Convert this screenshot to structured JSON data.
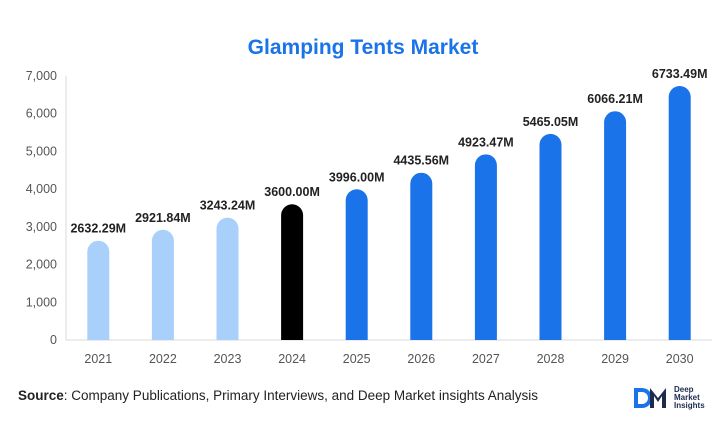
{
  "title": "Glamping Tents Market",
  "source": {
    "label": "Source",
    "text": ": Company Publications, Primary Interviews, and Deep Market insights Analysis"
  },
  "logo": {
    "mark": "DM",
    "lines": [
      "Deep",
      "Market",
      "Insights"
    ]
  },
  "colors": {
    "historical": "#a8d0fb",
    "base_year": "#000000",
    "forecast": "#1a73e8",
    "title": "#1a73e8"
  },
  "chart_data": {
    "type": "bar",
    "title": "Glamping Tents Market",
    "categories": [
      "2021",
      "2022",
      "2023",
      "2024",
      "2025",
      "2026",
      "2027",
      "2028",
      "2029",
      "2030"
    ],
    "values": [
      2632.29,
      2921.84,
      3243.24,
      3600.0,
      3996.0,
      4435.56,
      4923.47,
      5465.05,
      6066.21,
      6733.49
    ],
    "data_labels": [
      "2632.29M",
      "2921.84M",
      "3243.24M",
      "3600.00M",
      "3996.00M",
      "4435.56M",
      "4923.47M",
      "5465.05M",
      "6066.21M",
      "6733.49M"
    ],
    "bar_colors": [
      "#a8d0fb",
      "#a8d0fb",
      "#a8d0fb",
      "#000000",
      "#1a73e8",
      "#1a73e8",
      "#1a73e8",
      "#1a73e8",
      "#1a73e8",
      "#1a73e8"
    ],
    "ylim": [
      0,
      7000
    ],
    "yticks": [
      0,
      1000,
      2000,
      3000,
      4000,
      5000,
      6000,
      7000
    ],
    "ytick_labels": [
      "0",
      "1,000",
      "2,000",
      "3,000",
      "4,000",
      "5,000",
      "6,000",
      "7,000"
    ],
    "xlabel": "",
    "ylabel": "",
    "grid": false,
    "legend": "none"
  }
}
